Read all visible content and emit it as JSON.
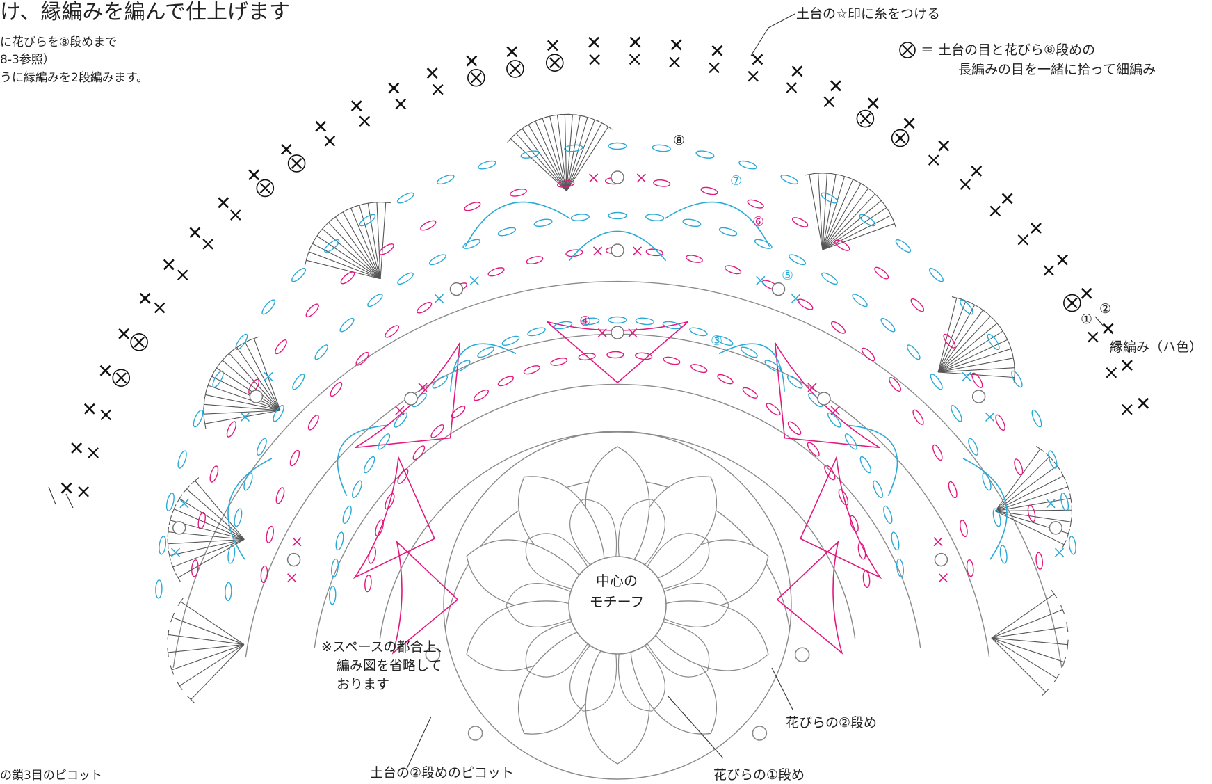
{
  "title": "け、縁編みを編んで仕上げます",
  "instructions": [
    "に花びらを⑧段めまで",
    "8-3参照）",
    "うに縁編みを2段編みます。"
  ],
  "callouts": {
    "thread_attach": "土台の☆印に糸をつける",
    "symbol_note_line1": "＝ 土台の目と花びら⑧段めの",
    "symbol_note_line2": "長編みの目を一緒に拾って細編み",
    "edging": "縁編み（ハ色）",
    "omitted_line1": "※スペースの都合上、",
    "omitted_line2": "編み図を省略して",
    "omitted_line3": "おります",
    "petal_round2": "花びらの②段め",
    "petal_round1": "花びらの①段め",
    "base_picot": "土台の②段めのピコット",
    "left_picot": "の鎖3目のピコット"
  },
  "center_motif": {
    "line1": "中心の",
    "line2": "モチーフ"
  },
  "round_markers": [
    "③",
    "④",
    "⑤",
    "⑥",
    "⑦",
    "⑧"
  ],
  "edging_rounds": [
    "①",
    "②"
  ],
  "colors": {
    "edging_black": "#111111",
    "round_blue": "#29a9d6",
    "round_pink": "#e2187e",
    "base_gray": "#8a8a8a",
    "text": "#222222"
  }
}
